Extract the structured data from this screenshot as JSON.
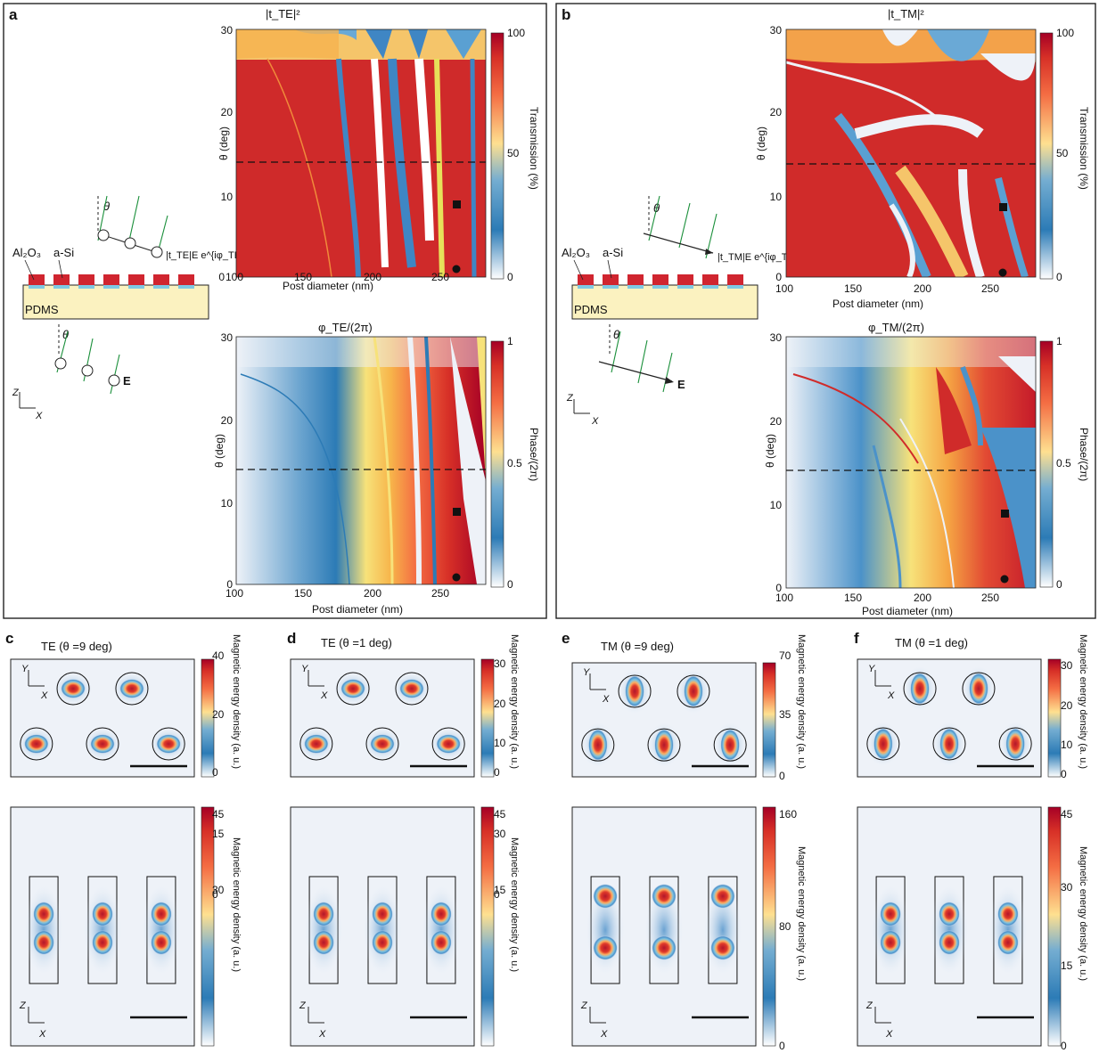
{
  "panels": {
    "a": {
      "letter": "a"
    },
    "b": {
      "letter": "b"
    },
    "c": {
      "letter": "c",
      "title": "TE (θ =9 deg)"
    },
    "d": {
      "letter": "d",
      "title": "TE (θ =1 deg)"
    },
    "e": {
      "letter": "e",
      "title": "TM (θ =9 deg)"
    },
    "f": {
      "letter": "f",
      "title": "TM (θ =1 deg)"
    }
  },
  "schematic": {
    "al2o3": "Al₂O₃",
    "asi": "a-Si",
    "pdms": "PDMS",
    "theta": "θ",
    "e_label": "E",
    "te_out": "|t_TE|E e^{iφ_TE}",
    "tm_out": "|t_TM|E e^{iφ_TM}",
    "axis_z": "Z",
    "axis_x": "X"
  },
  "maps": {
    "transmission_te_title": "|t_TE|²",
    "phase_te_title": "φ_TE/(2π)",
    "transmission_tm_title": "|t_TM|²",
    "phase_tm_title": "φ_TM/(2π)",
    "xlabel": "Post diameter (nm)",
    "ylabel": "θ (deg)",
    "xticks": [
      "100",
      "150",
      "200",
      "250"
    ],
    "yticks": [
      "0",
      "10",
      "20",
      "30"
    ],
    "transmission_cbar": "Transmission (%)",
    "transmission_cbar_ticks": [
      "0",
      "50",
      "100"
    ],
    "phase_cbar": "Phase/(2π)",
    "phase_cbar_ticks": [
      "0",
      "0.5",
      "1"
    ]
  },
  "field_maps": {
    "cbar_label": "Magnetic energy density (a. u.)",
    "axis_y": "Y",
    "axis_x": "X",
    "axis_z": "Z",
    "c_top_ticks": [
      "0",
      "20",
      "40"
    ],
    "d_top_ticks": [
      "0",
      "10",
      "20",
      "30"
    ],
    "e_top_ticks": [
      "0",
      "35",
      "70"
    ],
    "f_top_ticks": [
      "0",
      "10",
      "20",
      "30"
    ],
    "c_bot_ticks": [
      "0",
      "15",
      "30",
      "45"
    ],
    "d_bot_ticks": [
      "0",
      "15",
      "30",
      "45"
    ],
    "e_bot_ticks": [
      "0",
      "80",
      "160"
    ],
    "f_bot_ticks": [
      "0",
      "15",
      "30",
      "45"
    ]
  },
  "colors": {
    "jet_dark_red": "#b2172b",
    "jet_red": "#d73027",
    "jet_orange": "#f46d43",
    "jet_yellow": "#fee090",
    "jet_cyan": "#74add1",
    "jet_blue": "#2c7bb6",
    "background_white": "#eef2f8",
    "pdms": "#fbf2c0",
    "asi": "#d0252f",
    "al2o3": "#7ec8e3",
    "arrow_green": "#1a8f3a"
  },
  "markers": {
    "square_angle_deg": 9,
    "circle_angle_deg": 1,
    "marker_diameter_nm": 258,
    "dashed_line_angle_deg": 14
  }
}
